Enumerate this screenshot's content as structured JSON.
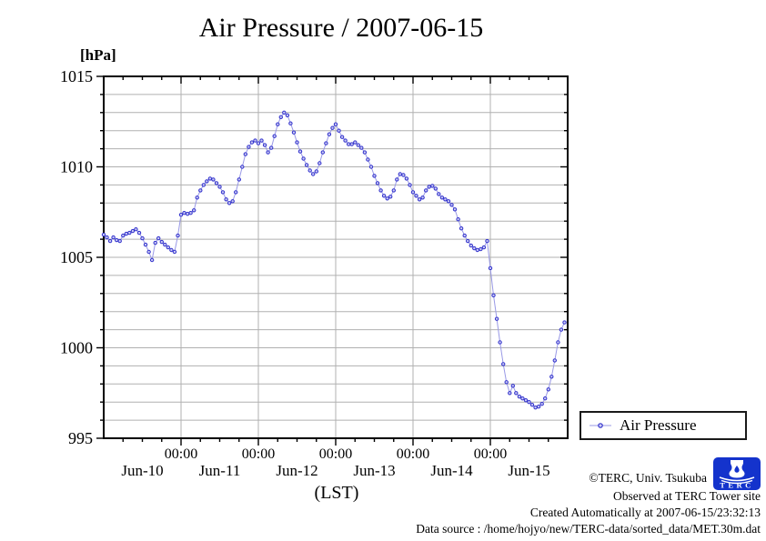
{
  "title": "Air Pressure / 2007-06-15",
  "y_axis": {
    "unit_label": "[hPa]",
    "tick_values": [
      995,
      1000,
      1005,
      1010,
      1015
    ],
    "tick_labels": [
      "995",
      "1000",
      "1005",
      "1010",
      "1015"
    ],
    "min": 995,
    "max": 1015,
    "minor_step_hpa": 1
  },
  "x_axis": {
    "axis_label": "(LST)",
    "major_tick_hours": [
      24,
      48,
      72,
      96,
      120
    ],
    "time_tick_labels": [
      "00:00",
      "00:00",
      "00:00",
      "00:00",
      "00:00"
    ],
    "day_labels": [
      "Jun-10",
      "Jun-11",
      "Jun-12",
      "Jun-13",
      "Jun-14",
      "Jun-15"
    ],
    "day_label_center_hours": [
      12,
      36,
      60,
      84,
      108,
      132
    ],
    "minor_tick_step_hours": 6,
    "span_hours": 144
  },
  "legend": {
    "label": "Air Pressure"
  },
  "footer": {
    "copyright": "©TERC, Univ. Tsukuba",
    "observed": "Observed at TERC Tower site",
    "created": "Created Automatically at 2007-06-15/23:32:13",
    "source": "Data source : /home/hojyo/new/TERC-data/sorted_data/MET.30m.dat",
    "logo_text": "TERC"
  },
  "colors": {
    "marker_stroke": "#3333cc",
    "marker_fill": "#ccccf5",
    "line": "#9999e6",
    "grid": "#b0b0b0",
    "axis": "#000000",
    "logo_blue": "#1433cc"
  },
  "chart_data": {
    "type": "line",
    "title": "Air Pressure / 2007-06-15",
    "xlabel": "(LST)",
    "ylabel": "[hPa]",
    "ylim": [
      995,
      1015
    ],
    "grid": "horizontal every 1 hPa, vertical at each midnight",
    "legend_position": "outside lower right",
    "x_start": "2007-06-10 00:00 LST",
    "x_interval_hours": 1,
    "x_span_hours": 144,
    "series": [
      {
        "name": "Air Pressure",
        "unit": "hPa",
        "values": [
          1006.25,
          1006.1,
          1005.9,
          1006.1,
          1005.95,
          1005.9,
          1006.2,
          1006.3,
          1006.35,
          1006.45,
          1006.55,
          1006.35,
          1006.05,
          1005.7,
          1005.3,
          1004.85,
          1005.8,
          1006.05,
          1005.85,
          1005.7,
          1005.55,
          1005.4,
          1005.3,
          1006.2,
          1007.35,
          1007.45,
          1007.4,
          1007.45,
          1007.6,
          1008.3,
          1008.7,
          1009.0,
          1009.2,
          1009.35,
          1009.3,
          1009.1,
          1008.9,
          1008.6,
          1008.2,
          1008.0,
          1008.1,
          1008.6,
          1009.3,
          1010.0,
          1010.7,
          1011.1,
          1011.35,
          1011.45,
          1011.3,
          1011.45,
          1011.2,
          1010.8,
          1011.05,
          1011.7,
          1012.35,
          1012.75,
          1013.0,
          1012.85,
          1012.4,
          1011.9,
          1011.35,
          1010.85,
          1010.45,
          1010.1,
          1009.8,
          1009.6,
          1009.75,
          1010.2,
          1010.8,
          1011.3,
          1011.8,
          1012.15,
          1012.35,
          1012.0,
          1011.65,
          1011.45,
          1011.25,
          1011.25,
          1011.35,
          1011.2,
          1011.05,
          1010.8,
          1010.4,
          1010.0,
          1009.5,
          1009.1,
          1008.7,
          1008.4,
          1008.25,
          1008.35,
          1008.7,
          1009.3,
          1009.6,
          1009.55,
          1009.35,
          1009.0,
          1008.6,
          1008.4,
          1008.2,
          1008.3,
          1008.7,
          1008.9,
          1008.95,
          1008.8,
          1008.5,
          1008.3,
          1008.2,
          1008.1,
          1007.9,
          1007.65,
          1007.1,
          1006.6,
          1006.2,
          1005.9,
          1005.65,
          1005.5,
          1005.4,
          1005.45,
          1005.55,
          1005.9,
          1004.4,
          1002.9,
          1001.6,
          1000.3,
          999.1,
          998.1,
          997.5,
          997.9,
          997.5,
          997.3,
          997.2,
          997.1,
          997.0,
          996.85,
          996.7,
          996.75,
          996.9,
          997.2,
          997.7,
          998.4,
          999.3,
          1000.3,
          1001.0,
          1001.4
        ]
      }
    ]
  }
}
